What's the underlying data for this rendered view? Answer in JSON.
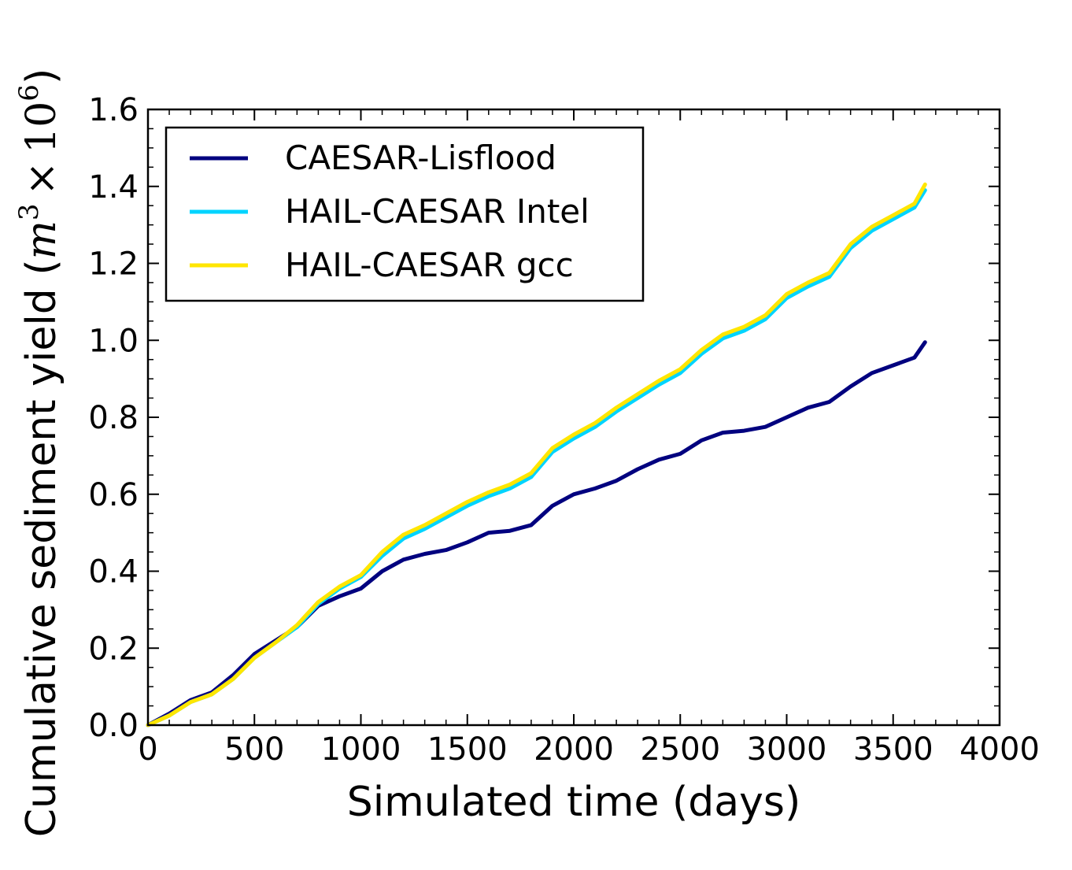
{
  "chart_data": {
    "type": "line",
    "xlabel": "Simulated time (days)",
    "ylabel_text": "Cumulative sediment yield (",
    "ylabel_unit_base": "m",
    "ylabel_unit_exp": "3",
    "ylabel_times": "×",
    "ylabel_ten": "10",
    "ylabel_ten_exp": "6",
    "ylabel_close": ")",
    "xlim": [
      0,
      4000
    ],
    "ylim": [
      0,
      1.6
    ],
    "xticks": [
      0,
      500,
      1000,
      1500,
      2000,
      2500,
      3000,
      3500,
      4000
    ],
    "yticks": [
      0.0,
      0.2,
      0.4,
      0.6,
      0.8,
      1.0,
      1.2,
      1.4,
      1.6
    ],
    "xtick_labels": [
      "0",
      "500",
      "1000",
      "1500",
      "2000",
      "2500",
      "3000",
      "3500",
      "4000"
    ],
    "ytick_labels": [
      "0.0",
      "0.2",
      "0.4",
      "0.6",
      "0.8",
      "1.0",
      "1.2",
      "1.4",
      "1.6"
    ],
    "grid": false,
    "legend_position": "top-left",
    "series": [
      {
        "name": "CAESAR-Lisflood",
        "color": "#00007f",
        "x": [
          0,
          100,
          200,
          300,
          400,
          500,
          600,
          700,
          800,
          900,
          1000,
          1100,
          1200,
          1300,
          1400,
          1500,
          1600,
          1700,
          1800,
          1900,
          2000,
          2100,
          2200,
          2300,
          2400,
          2500,
          2600,
          2700,
          2800,
          2900,
          3000,
          3100,
          3200,
          3300,
          3400,
          3500,
          3600,
          3650
        ],
        "y": [
          0.0,
          0.03,
          0.065,
          0.085,
          0.13,
          0.185,
          0.22,
          0.255,
          0.31,
          0.335,
          0.355,
          0.4,
          0.43,
          0.445,
          0.455,
          0.475,
          0.5,
          0.505,
          0.52,
          0.57,
          0.6,
          0.615,
          0.635,
          0.665,
          0.69,
          0.705,
          0.74,
          0.76,
          0.765,
          0.775,
          0.8,
          0.825,
          0.84,
          0.88,
          0.915,
          0.935,
          0.955,
          0.995
        ]
      },
      {
        "name": "HAIL-CAESAR Intel",
        "color": "#00d4ff",
        "x": [
          0,
          100,
          200,
          300,
          400,
          500,
          600,
          700,
          800,
          900,
          1000,
          1100,
          1200,
          1300,
          1400,
          1500,
          1600,
          1700,
          1800,
          1900,
          2000,
          2100,
          2200,
          2300,
          2400,
          2500,
          2600,
          2700,
          2800,
          2900,
          3000,
          3100,
          3200,
          3300,
          3400,
          3500,
          3600,
          3650
        ],
        "y": [
          0.0,
          0.025,
          0.06,
          0.08,
          0.12,
          0.175,
          0.215,
          0.255,
          0.315,
          0.355,
          0.385,
          0.44,
          0.485,
          0.51,
          0.54,
          0.57,
          0.595,
          0.615,
          0.645,
          0.71,
          0.745,
          0.775,
          0.815,
          0.85,
          0.885,
          0.915,
          0.965,
          1.005,
          1.025,
          1.055,
          1.11,
          1.14,
          1.165,
          1.24,
          1.285,
          1.315,
          1.345,
          1.39
        ]
      },
      {
        "name": "HAIL-CAESAR gcc",
        "color": "#ffe600",
        "x": [
          0,
          100,
          200,
          300,
          400,
          500,
          600,
          700,
          800,
          900,
          1000,
          1100,
          1200,
          1300,
          1400,
          1500,
          1600,
          1700,
          1800,
          1900,
          2000,
          2100,
          2200,
          2300,
          2400,
          2500,
          2600,
          2700,
          2800,
          2900,
          3000,
          3100,
          3200,
          3300,
          3400,
          3500,
          3600,
          3650
        ],
        "y": [
          0.0,
          0.025,
          0.06,
          0.08,
          0.12,
          0.175,
          0.215,
          0.26,
          0.32,
          0.36,
          0.39,
          0.45,
          0.495,
          0.52,
          0.55,
          0.58,
          0.605,
          0.625,
          0.655,
          0.72,
          0.755,
          0.785,
          0.825,
          0.86,
          0.895,
          0.925,
          0.975,
          1.015,
          1.035,
          1.065,
          1.12,
          1.15,
          1.175,
          1.25,
          1.295,
          1.325,
          1.355,
          1.405
        ]
      }
    ]
  }
}
